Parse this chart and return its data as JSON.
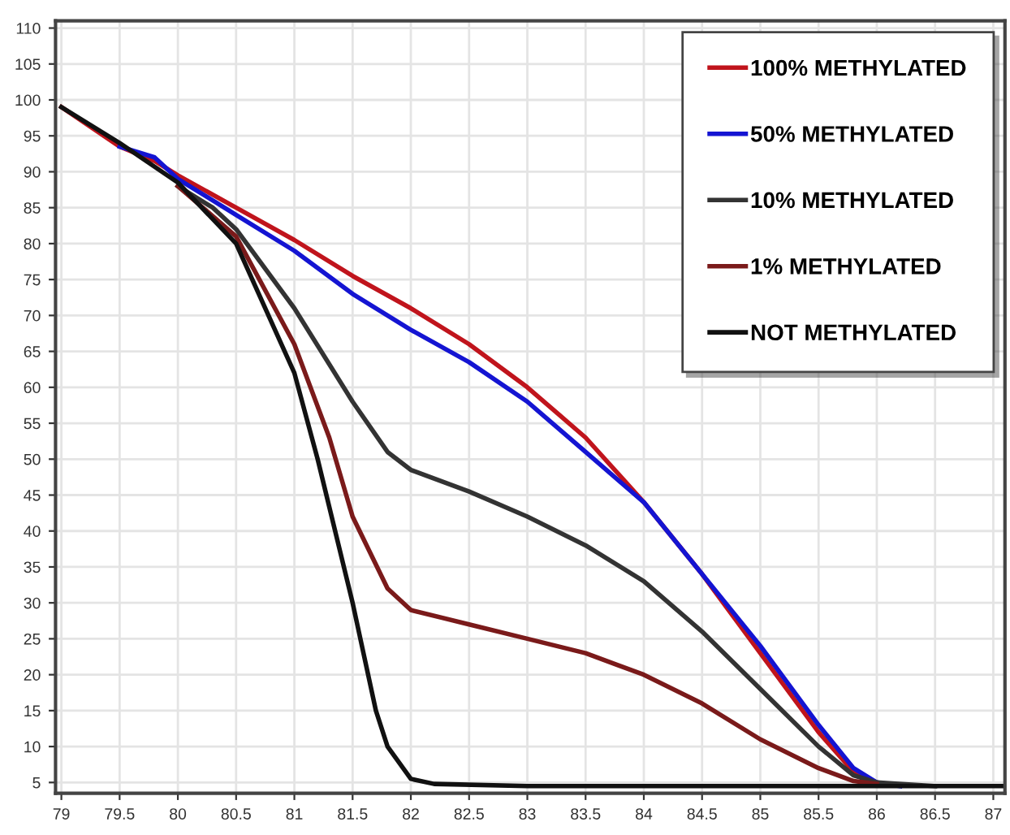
{
  "chart_data": {
    "type": "line",
    "xlim": [
      78.95,
      87.1
    ],
    "ylim": [
      3.5,
      111
    ],
    "xticks": [
      79,
      79.5,
      80,
      80.5,
      81,
      81.5,
      82,
      82.5,
      83,
      83.5,
      84,
      84.5,
      85,
      85.5,
      86,
      86.5,
      87
    ],
    "yticks": [
      5,
      10,
      15,
      20,
      25,
      30,
      35,
      40,
      45,
      50,
      55,
      60,
      65,
      70,
      75,
      80,
      85,
      90,
      95,
      100,
      105,
      110
    ],
    "grid": true,
    "legend": "top right",
    "marker": "none",
    "line_style": "solid",
    "series": [
      {
        "name": "100% METHYLATED",
        "color": "#c0141c",
        "x": [
          79,
          79.5,
          79.8,
          80,
          80.5,
          81,
          81.5,
          82,
          82.5,
          83,
          83.5,
          84,
          84.5,
          85,
          85.5,
          85.8,
          86
        ],
        "values": [
          99,
          93.5,
          91.5,
          89.5,
          85,
          80.5,
          75.5,
          71,
          66,
          60,
          53,
          44,
          34,
          23,
          12,
          6.5,
          5
        ]
      },
      {
        "name": "50% METHYLATED",
        "color": "#1414d2",
        "x": [
          79.5,
          79.8,
          80,
          80.5,
          81,
          81.5,
          82,
          82.5,
          83,
          83.5,
          84,
          84.5,
          85,
          85.5,
          85.8,
          86,
          86.2
        ],
        "values": [
          93.5,
          92,
          89,
          84,
          79,
          73,
          68,
          63.5,
          58,
          51,
          44,
          34,
          24,
          13,
          7,
          5,
          4.5
        ]
      },
      {
        "name": "10% METHYLATED",
        "color": "#333333",
        "x": [
          80,
          80.3,
          80.5,
          81,
          81.5,
          81.8,
          82,
          82.5,
          83,
          83.5,
          84,
          84.5,
          85,
          85.5,
          85.8,
          86,
          86.5
        ],
        "values": [
          88,
          85,
          82,
          71,
          58,
          51,
          48.5,
          45.5,
          42,
          38,
          33,
          26,
          18,
          10,
          6,
          5,
          4.5
        ]
      },
      {
        "name": "1% METHYLATED",
        "color": "#7a1a1a",
        "x": [
          80,
          80.5,
          81,
          81.3,
          81.5,
          81.8,
          82,
          82.5,
          83,
          83.5,
          84,
          84.5,
          85,
          85.5,
          85.8,
          86
        ],
        "values": [
          88,
          81,
          66,
          53,
          42,
          32,
          29,
          27,
          25,
          23,
          20,
          16,
          11,
          7,
          5.2,
          4.8
        ]
      },
      {
        "name": "NOT METHYLATED",
        "color": "#111111",
        "x": [
          79,
          79.5,
          80,
          80.5,
          81,
          81.2,
          81.5,
          81.7,
          81.8,
          82,
          82.2,
          83,
          87.1
        ],
        "values": [
          99,
          94,
          88.5,
          80,
          62,
          50,
          30,
          15,
          10,
          5.5,
          4.8,
          4.5,
          4.5
        ]
      }
    ]
  }
}
